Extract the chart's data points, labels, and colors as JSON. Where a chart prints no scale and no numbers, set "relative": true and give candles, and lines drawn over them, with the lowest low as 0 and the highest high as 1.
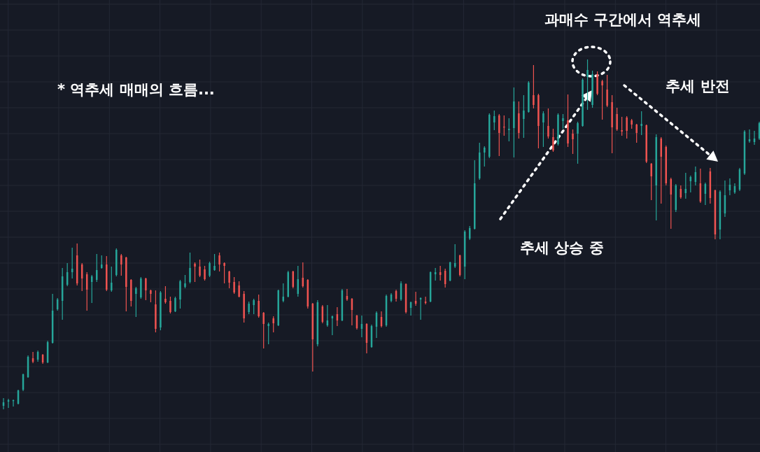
{
  "chart_data": {
    "type": "candlestick",
    "title": "* 역추세 매매의 흐름...",
    "annotations": [
      "과매수 구간에서 역추세",
      "추세 반전",
      "추세 상승 중"
    ],
    "relative": true,
    "grid": true,
    "colors": [
      "#26a69a",
      "#26a69a",
      "#26a69a",
      "#26a69a",
      "#26a69a",
      "#26a69a",
      "#ef5350",
      "#26a69a",
      "#ef5350",
      "#26a69a",
      "#26a69a",
      "#26a69a",
      "#26a69a",
      "#26a69a",
      "#26a69a",
      "#ef5350",
      "#ef5350",
      "#ef5350",
      "#26a69a",
      "#26a69a",
      "#26a69a",
      "#ef5350",
      "#26a69a",
      "#26a69a",
      "#ef5350",
      "#ef5350",
      "#ef5350",
      "#26a69a",
      "#26a69a",
      "#ef5350",
      "#ef5350",
      "#ef5350",
      "#26a69a",
      "#ef5350",
      "#ef5350",
      "#26a69a",
      "#26a69a",
      "#26a69a",
      "#26a69a",
      "#ef5350",
      "#ef5350",
      "#ef5350",
      "#26a69a",
      "#26a69a",
      "#ef5350",
      "#ef5350",
      "#ef5350",
      "#ef5350",
      "#ef5350",
      "#ef5350",
      "#26a69a",
      "#26a69a",
      "#ef5350",
      "#ef5350",
      "#26a69a",
      "#ef5350",
      "#26a69a",
      "#26a69a",
      "#26a69a",
      "#ef5350",
      "#26a69a",
      "#ef5350",
      "#ef5350",
      "#ef5350",
      "#26a69a",
      "#ef5350",
      "#26a69a",
      "#26a69a",
      "#ef5350",
      "#26a69a",
      "#ef5350",
      "#ef5350",
      "#ef5350",
      "#26a69a",
      "#ef5350",
      "#26a69a",
      "#26a69a",
      "#ef5350",
      "#26a69a",
      "#26a69a",
      "#ef5350",
      "#26a69a",
      "#ef5350",
      "#26a69a",
      "#ef5350",
      "#26a69a",
      "#ef5350",
      "#26a69a",
      "#26a69a",
      "#ef5350",
      "#ef5350",
      "#26a69a",
      "#26a69a",
      "#ef5350",
      "#26a69a",
      "#26a69a",
      "#26a69a",
      "#26a69a",
      "#26a69a",
      "#26a69a",
      "#26a69a",
      "#ef5350",
      "#ef5350",
      "#26a69a",
      "#26a69a",
      "#ef5350",
      "#26a69a",
      "#26a69a",
      "#ef5350",
      "#ef5350",
      "#26a69a",
      "#ef5350",
      "#ef5350",
      "#26a69a",
      "#26a69a",
      "#ef5350",
      "#ef5350",
      "#26a69a",
      "#26a69a",
      "#26a69a",
      "#26a69a",
      "#ef5350",
      "#ef5350",
      "#ef5350",
      "#ef5350",
      "#ef5350",
      "#ef5350",
      "#ef5350",
      "#ef5350",
      "#ef5350",
      "#26a69a",
      "#ef5350",
      "#ef5350",
      "#26a69a",
      "#ef5350",
      "#ef5350",
      "#ef5350",
      "#26a69a",
      "#ef5350",
      "#26a69a",
      "#26a69a",
      "#26a69a",
      "#ef5350",
      "#26a69a",
      "#ef5350",
      "#ef5350",
      "#26a69a",
      "#26a69a",
      "#26a69a",
      "#26a69a",
      "#26a69a",
      "#26a69a",
      "#26a69a",
      "#26a69a",
      "#26a69a"
    ],
    "categories": [
      null,
      null,
      null,
      null,
      null,
      null,
      null,
      null,
      null,
      null,
      null,
      null,
      null,
      null,
      null,
      null,
      null,
      null,
      null,
      null,
      null,
      null,
      null,
      null,
      null,
      null,
      null,
      null,
      null,
      null,
      null,
      null,
      null,
      null,
      null,
      null,
      null,
      null,
      null,
      null,
      null,
      null,
      null,
      null,
      null,
      null,
      null,
      null,
      null,
      null,
      null,
      null,
      null,
      null,
      null,
      null,
      null,
      null,
      null,
      null,
      null,
      null,
      null,
      null,
      null,
      null,
      null,
      null,
      null,
      null,
      null,
      null,
      null,
      null,
      null,
      null,
      null,
      null,
      null,
      null,
      null,
      null,
      null,
      null,
      null,
      null,
      null,
      null,
      null,
      null,
      null,
      null,
      null,
      null,
      null,
      null,
      null,
      null,
      null,
      null,
      null,
      null,
      null,
      null,
      null,
      null,
      null,
      null,
      null,
      null,
      null,
      null,
      null,
      null,
      null,
      null,
      null,
      null,
      null,
      null,
      null,
      null,
      null,
      null,
      null,
      null,
      null,
      null,
      null,
      null,
      null,
      null,
      null,
      null,
      null,
      null,
      null,
      null,
      null,
      null,
      null,
      null,
      null,
      null,
      null,
      null,
      null,
      null,
      null,
      null,
      null,
      null,
      null,
      null,
      null
    ],
    "ohlc": [
      [
        0.01,
        0.032,
        0,
        0.02
      ],
      [
        0.022,
        0.03,
        0.004,
        0.026
      ],
      [
        0.024,
        0.028,
        0.008,
        0.026
      ],
      [
        0.016,
        0.056,
        0.014,
        0.054
      ],
      [
        0.056,
        0.102,
        0.052,
        0.1
      ],
      [
        0.092,
        0.154,
        0.09,
        0.15
      ],
      [
        0.146,
        0.164,
        0.132,
        0.136
      ],
      [
        0.142,
        0.168,
        0.136,
        0.164
      ],
      [
        0.156,
        0.158,
        0.13,
        0.134
      ],
      [
        0.134,
        0.196,
        0.132,
        0.192
      ],
      [
        0.19,
        0.33,
        0.188,
        0.282
      ],
      [
        0.286,
        0.318,
        0.282,
        0.314
      ],
      [
        0.31,
        0.404,
        0.256,
        0.38
      ],
      [
        0.356,
        0.418,
        0.352,
        0.392
      ],
      [
        0.392,
        0.462,
        0.374,
        0.402
      ],
      [
        0.44,
        0.474,
        0.354,
        0.36
      ],
      [
        0.414,
        0.418,
        0.338,
        0.374
      ],
      [
        0.386,
        0.392,
        0.282,
        0.342
      ],
      [
        0.364,
        0.384,
        0.304,
        0.38
      ],
      [
        0.37,
        0.444,
        0.364,
        0.398
      ],
      [
        0.404,
        0.44,
        0.402,
        0.414
      ],
      [
        0.414,
        0.438,
        0.338,
        0.342
      ],
      [
        0.34,
        0.408,
        0.336,
        0.362
      ],
      [
        0.384,
        0.46,
        0.38,
        0.456
      ],
      [
        0.44,
        0.444,
        0.382,
        0.414
      ],
      [
        0.434,
        0.436,
        0.28,
        0.35
      ],
      [
        0.37,
        0.372,
        0.294,
        0.31
      ],
      [
        0.33,
        0.35,
        0.264,
        0.346
      ],
      [
        0.32,
        0.378,
        0.316,
        0.374
      ],
      [
        0.374,
        0.376,
        0.312,
        0.34
      ],
      [
        0.34,
        0.342,
        0.306,
        0.33
      ],
      [
        0.3,
        0.34,
        0.22,
        0.23
      ],
      [
        0.234,
        0.338,
        0.226,
        0.334
      ],
      [
        0.316,
        0.352,
        0.302,
        0.306
      ],
      [
        0.31,
        0.322,
        0.274,
        0.278
      ],
      [
        0.28,
        0.322,
        0.278,
        0.318
      ],
      [
        0.314,
        0.37,
        0.288,
        0.366
      ],
      [
        0.35,
        0.384,
        0.346,
        0.36
      ],
      [
        0.364,
        0.448,
        0.36,
        0.404
      ],
      [
        0.416,
        0.42,
        0.364,
        0.408
      ],
      [
        0.408,
        0.428,
        0.378,
        0.382
      ],
      [
        0.4,
        0.41,
        0.368,
        0.372
      ],
      [
        0.382,
        0.422,
        0.378,
        0.418
      ],
      [
        0.398,
        0.444,
        0.396,
        0.41
      ],
      [
        0.44,
        0.448,
        0.394,
        0.414
      ],
      [
        0.418,
        0.42,
        0.36,
        0.41
      ],
      [
        0.394,
        0.396,
        0.346,
        0.362
      ],
      [
        0.364,
        0.378,
        0.33,
        0.334
      ],
      [
        0.354,
        0.366,
        0.32,
        0.322
      ],
      [
        0.33,
        0.338,
        0.248,
        0.26
      ],
      [
        0.278,
        0.308,
        0.272,
        0.302
      ],
      [
        0.298,
        0.316,
        0.272,
        0.312
      ],
      [
        0.31,
        0.328,
        0.262,
        0.266
      ],
      [
        0.276,
        0.278,
        0.174,
        0.244
      ],
      [
        0.238,
        0.248,
        0.186,
        0.244
      ],
      [
        0.26,
        0.266,
        0.22,
        0.246
      ],
      [
        0.24,
        0.342,
        0.238,
        0.34
      ],
      [
        0.31,
        0.36,
        0.306,
        0.322
      ],
      [
        0.322,
        0.396,
        0.32,
        0.392
      ],
      [
        0.394,
        0.396,
        0.346,
        0.35
      ],
      [
        0.33,
        0.41,
        0.322,
        0.372
      ],
      [
        0.376,
        0.42,
        0.348,
        0.352
      ],
      [
        0.37,
        0.372,
        0.288,
        0.294
      ],
      [
        0.302,
        0.304,
        0.108,
        0.2
      ],
      [
        0.186,
        0.312,
        0.18,
        0.306
      ],
      [
        0.294,
        0.298,
        0.246,
        0.25
      ],
      [
        0.24,
        0.298,
        0.236,
        0.254
      ],
      [
        0.26,
        0.268,
        0.212,
        0.266
      ],
      [
        0.272,
        0.292,
        0.238,
        0.254
      ],
      [
        0.254,
        0.344,
        0.252,
        0.34
      ],
      [
        0.324,
        0.344,
        0.31,
        0.314
      ],
      [
        0.316,
        0.318,
        0.24,
        0.284
      ],
      [
        0.268,
        0.27,
        0.228,
        0.232
      ],
      [
        0.23,
        0.268,
        0.206,
        0.244
      ],
      [
        0.244,
        0.246,
        0.16,
        0.19
      ],
      [
        0.178,
        0.242,
        0.176,
        0.238
      ],
      [
        0.236,
        0.28,
        0.204,
        0.276
      ],
      [
        0.264,
        0.28,
        0.234,
        0.238
      ],
      [
        0.24,
        0.328,
        0.236,
        0.324
      ],
      [
        0.31,
        0.332,
        0.306,
        0.328
      ],
      [
        0.338,
        0.342,
        0.308,
        0.316
      ],
      [
        0.314,
        0.366,
        0.31,
        0.36
      ],
      [
        0.358,
        0.36,
        0.274,
        0.278
      ],
      [
        0.29,
        0.308,
        0.268,
        0.306
      ],
      [
        0.31,
        0.336,
        0.296,
        0.302
      ],
      [
        0.314,
        0.32,
        0.256,
        0.318
      ],
      [
        0.308,
        0.322,
        0.3,
        0.304
      ],
      [
        0.308,
        0.394,
        0.306,
        0.392
      ],
      [
        0.386,
        0.404,
        0.368,
        0.392
      ],
      [
        0.392,
        0.41,
        0.368,
        0.384
      ],
      [
        0.396,
        0.402,
        0.348,
        0.358
      ],
      [
        0.368,
        0.422,
        0.366,
        0.42
      ],
      [
        0.408,
        0.472,
        0.404,
        0.418
      ],
      [
        0.44,
        0.442,
        0.38,
        0.384
      ],
      [
        0.408,
        0.512,
        0.372,
        0.508
      ],
      [
        0.488,
        0.524,
        0.484,
        0.518
      ],
      [
        0.516,
        0.712,
        0.514,
        0.646
      ],
      [
        0.66,
        0.762,
        0.656,
        0.734
      ],
      [
        0.734,
        0.752,
        0.694,
        0.748
      ],
      [
        0.722,
        0.846,
        0.718,
        0.842
      ],
      [
        0.82,
        0.854,
        0.798,
        0.838
      ],
      [
        0.84,
        0.844,
        0.724,
        0.79
      ],
      [
        0.808,
        0.84,
        0.782,
        0.806
      ],
      [
        0.798,
        0.832,
        0.766,
        0.802
      ],
      [
        0.804,
        0.92,
        0.72,
        0.88
      ],
      [
        0.846,
        0.88,
        0.774,
        0.79
      ],
      [
        0.83,
        0.898,
        0.776,
        0.854
      ],
      [
        0.85,
        0.938,
        0.848,
        0.934
      ],
      [
        0.898,
        0.984,
        0.86,
        0.87
      ],
      [
        0.898,
        0.902,
        0.746,
        0.81
      ],
      [
        0.82,
        0.852,
        0.75,
        0.846
      ],
      [
        0.81,
        0.86,
        0.774,
        0.78
      ],
      [
        0.778,
        0.802,
        0.736,
        0.74
      ],
      [
        0.758,
        0.846,
        0.754,
        0.842
      ],
      [
        0.824,
        0.844,
        0.802,
        0.832
      ],
      [
        0.826,
        0.9,
        0.75,
        0.76
      ],
      [
        0.788,
        0.8,
        0.73,
        0.772
      ],
      [
        0.788,
        0.822,
        0.702,
        0.818
      ],
      [
        0.81,
        0.946,
        0.808,
        0.942
      ],
      [
        0.95,
        1.0,
        0.856,
        0.97
      ],
      [
        0.87,
        0.968,
        0.862,
        0.958
      ],
      [
        0.958,
        0.966,
        0.898,
        0.902
      ],
      [
        0.938,
        0.942,
        0.828,
        0.926
      ],
      [
        0.914,
        0.956,
        0.864,
        0.868
      ],
      [
        0.878,
        0.898,
        0.732,
        0.806
      ],
      [
        0.844,
        0.862,
        0.796,
        0.8
      ],
      [
        0.798,
        0.836,
        0.782,
        0.794
      ],
      [
        0.834,
        0.838,
        0.774,
        0.796
      ],
      [
        0.826,
        0.83,
        0.802,
        0.814
      ],
      [
        0.814,
        0.816,
        0.762,
        0.79
      ],
      [
        0.81,
        0.852,
        0.784,
        0.816
      ],
      [
        0.812,
        0.814,
        0.704,
        0.708
      ],
      [
        0.702,
        0.704,
        0.598,
        0.666
      ],
      [
        0.64,
        0.786,
        0.54,
        0.778
      ],
      [
        0.774,
        0.778,
        0.588,
        0.722
      ],
      [
        0.75,
        0.754,
        0.64,
        0.646
      ],
      [
        0.658,
        0.662,
        0.516,
        0.614
      ],
      [
        0.57,
        0.644,
        0.564,
        0.64
      ],
      [
        0.63,
        0.64,
        0.602,
        0.606
      ],
      [
        0.618,
        0.676,
        0.602,
        0.63
      ],
      [
        0.652,
        0.668,
        0.62,
        0.664
      ],
      [
        0.65,
        0.694,
        0.64,
        0.678
      ],
      [
        0.646,
        0.688,
        0.59,
        0.594
      ],
      [
        0.616,
        0.648,
        0.584,
        0.644
      ],
      [
        0.68,
        0.69,
        0.588,
        0.604
      ],
      [
        0.626,
        0.628,
        0.486,
        0.5
      ],
      [
        0.514,
        0.626,
        0.486,
        0.622
      ],
      [
        0.56,
        0.654,
        0.55,
        0.612
      ],
      [
        0.626,
        0.66,
        0.612,
        0.642
      ],
      [
        0.62,
        0.646,
        0.616,
        0.638
      ],
      [
        0.628,
        0.69,
        0.624,
        0.686
      ],
      [
        0.674,
        0.798,
        0.67,
        0.794
      ],
      [
        0.766,
        0.8,
        0.762,
        0.772
      ],
      [
        0.764,
        0.796,
        0.756,
        0.774
      ],
      [
        0.774,
        0.822,
        0.77,
        0.818
      ]
    ]
  }
}
